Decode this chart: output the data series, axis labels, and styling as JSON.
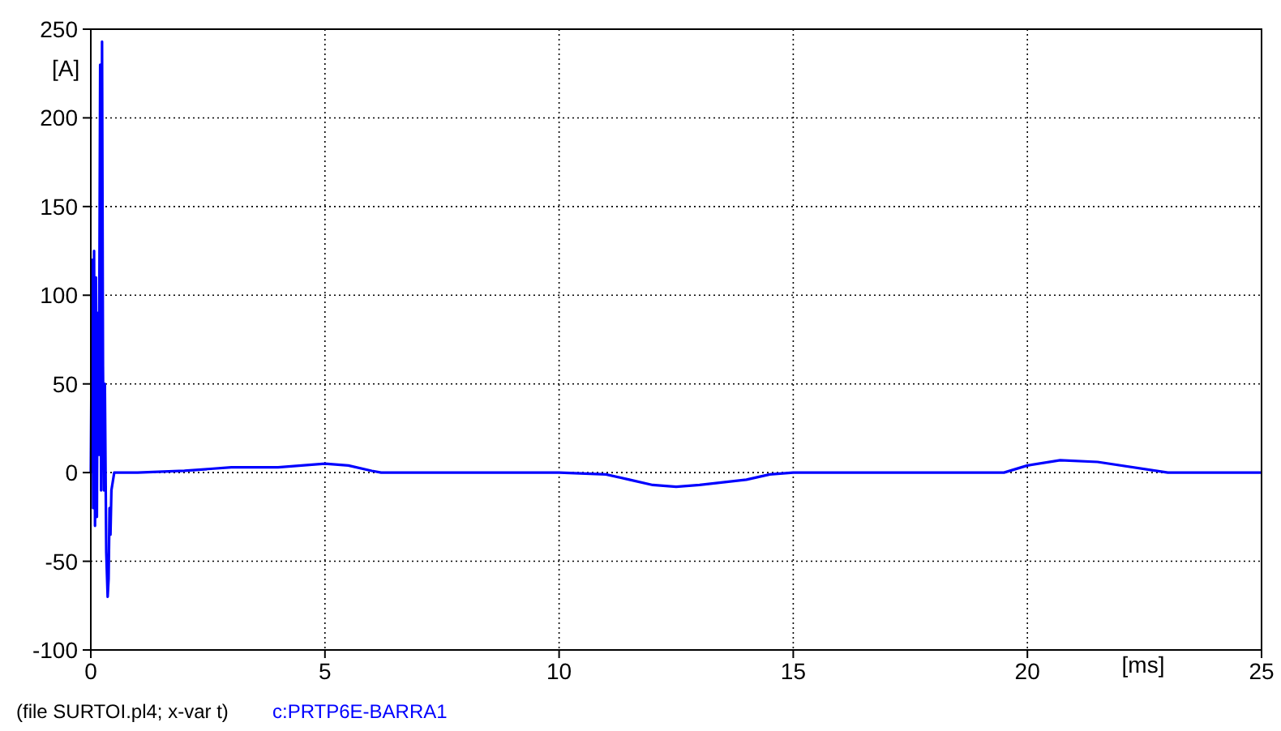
{
  "chart_data": {
    "type": "line",
    "xlabel": "[ms]",
    "ylabel": "[A]",
    "xlim": [
      0,
      25
    ],
    "ylim": [
      -100,
      250
    ],
    "xticks": [
      0,
      5,
      10,
      15,
      20,
      25
    ],
    "yticks": [
      -100,
      -50,
      0,
      50,
      100,
      150,
      200,
      250
    ],
    "grid": true,
    "legend": "bottom left",
    "annotations": [
      "(file SURTOI.pl4; x-var t)"
    ],
    "series": [
      {
        "name": "c:PRTP6E-BARRA1",
        "color": "#0000ff",
        "x": [
          0,
          0.03,
          0.05,
          0.07,
          0.09,
          0.11,
          0.13,
          0.15,
          0.17,
          0.2,
          0.22,
          0.24,
          0.26,
          0.28,
          0.3,
          0.33,
          0.36,
          0.38,
          0.4,
          0.42,
          0.44,
          0.5,
          1,
          2,
          2.5,
          3,
          4,
          4.5,
          5,
          5.5,
          6,
          6.2,
          10,
          11,
          11.5,
          12,
          12.5,
          13,
          14,
          14.5,
          15,
          19.5,
          20,
          20.7,
          21.5,
          23,
          25
        ],
        "values": [
          0,
          120,
          -20,
          125,
          -30,
          110,
          -25,
          90,
          10,
          230,
          -10,
          243,
          60,
          -10,
          50,
          -45,
          -70,
          -60,
          -20,
          -35,
          -10,
          0,
          0,
          1,
          2,
          3,
          3,
          4,
          5,
          4,
          1,
          0,
          0,
          -1,
          -4,
          -7,
          -8,
          -7,
          -4,
          -1,
          0,
          0,
          4,
          7,
          6,
          0,
          0
        ]
      }
    ]
  }
}
